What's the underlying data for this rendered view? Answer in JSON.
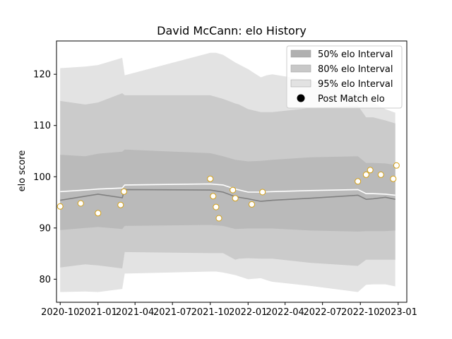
{
  "chart_data": {
    "type": "line",
    "title": "David McCann: elo History",
    "xlabel": "",
    "ylabel": "elo score",
    "xlim": [
      "2020-09-22",
      "2023-01-22"
    ],
    "ylim": [
      75.5,
      126.5
    ],
    "xticks": [
      "2020-10",
      "2021-01",
      "2021-04",
      "2021-07",
      "2021-10",
      "2022-01",
      "2022-04",
      "2022-07",
      "2022-10",
      "2023-01"
    ],
    "yticks": [
      80,
      90,
      100,
      110,
      120
    ],
    "grid": false,
    "legend_position": "top-right",
    "legend": [
      {
        "label": "50% elo Interval",
        "color": "#b0b0b0",
        "kind": "patch"
      },
      {
        "label": "80% elo Interval",
        "color": "#c8c8c8",
        "kind": "patch"
      },
      {
        "label": "95% elo Interval",
        "color": "#e2e2e2",
        "kind": "patch"
      },
      {
        "label": "Post Match elo",
        "color": "#000000",
        "kind": "marker"
      }
    ],
    "series": [
      {
        "name": "95% elo Interval",
        "kind": "band",
        "color": "#e3e3e3",
        "x": [
          "2020-10-01",
          "2020-12-01",
          "2021-01-01",
          "2021-03-01",
          "2021-03-07",
          "2021-10-01",
          "2021-10-15",
          "2021-11-01",
          "2021-12-01",
          "2022-01-01",
          "2022-02-01",
          "2022-02-15",
          "2022-03-01",
          "2022-06-01",
          "2022-09-25",
          "2022-10-15",
          "2022-11-01",
          "2022-12-01",
          "2022-12-25"
        ],
        "upper": [
          121.2,
          121.5,
          121.8,
          123.2,
          119.8,
          124.2,
          124.2,
          123.8,
          122.3,
          121.0,
          119.4,
          119.8,
          120.0,
          118.8,
          116.8,
          115.8,
          114.5,
          113.2,
          112.5
        ],
        "lower": [
          77.5,
          77.6,
          77.5,
          78.1,
          81.1,
          81.5,
          81.5,
          81.3,
          80.8,
          80.0,
          80.2,
          79.8,
          79.5,
          78.7,
          77.5,
          78.9,
          79.0,
          79.0,
          78.6
        ]
      },
      {
        "name": "80% elo Interval",
        "kind": "band",
        "color": "#cbcbcb",
        "x": [
          "2020-10-01",
          "2020-12-01",
          "2021-01-01",
          "2021-03-01",
          "2021-03-07",
          "2021-10-01",
          "2021-11-01",
          "2021-12-01",
          "2021-12-10",
          "2022-01-01",
          "2022-02-01",
          "2022-03-01",
          "2022-06-01",
          "2022-09-25",
          "2022-10-15",
          "2022-11-01",
          "2022-12-01",
          "2022-12-25"
        ],
        "upper": [
          114.8,
          114.1,
          114.5,
          116.3,
          115.9,
          115.9,
          115.2,
          114.3,
          114.1,
          113.2,
          112.6,
          112.6,
          113.4,
          113.9,
          111.6,
          111.6,
          111.0,
          110.4
        ],
        "lower": [
          82.3,
          82.9,
          82.7,
          82.1,
          85.3,
          85.1,
          85.1,
          83.8,
          84.0,
          84.1,
          84.0,
          84.0,
          83.2,
          82.6,
          83.8,
          83.8,
          83.8,
          83.8
        ]
      },
      {
        "name": "50% elo Interval",
        "kind": "band",
        "color": "#bababa",
        "x": [
          "2020-10-01",
          "2020-12-01",
          "2021-01-01",
          "2021-03-01",
          "2021-03-07",
          "2021-10-01",
          "2021-11-01",
          "2021-12-01",
          "2022-01-01",
          "2022-02-01",
          "2022-03-01",
          "2022-06-01",
          "2022-09-25",
          "2022-10-15",
          "2022-11-01",
          "2022-12-01",
          "2022-12-25"
        ],
        "upper": [
          104.3,
          104.0,
          104.5,
          104.9,
          105.3,
          104.6,
          104.0,
          103.3,
          103.0,
          103.1,
          103.3,
          103.8,
          104.0,
          102.7,
          102.7,
          102.6,
          102.3
        ],
        "lower": [
          89.6,
          90.0,
          90.2,
          89.8,
          90.4,
          90.6,
          90.4,
          89.8,
          89.9,
          89.9,
          89.9,
          89.5,
          89.3,
          89.4,
          89.4,
          89.4,
          89.5
        ]
      },
      {
        "name": "",
        "kind": "line",
        "color": "#808080",
        "x": [
          "2020-10-01",
          "2020-12-01",
          "2021-01-01",
          "2021-03-01",
          "2021-03-07",
          "2021-10-01",
          "2021-11-01",
          "2021-12-01",
          "2022-01-01",
          "2022-02-01",
          "2022-03-01",
          "2022-06-01",
          "2022-09-25",
          "2022-10-15",
          "2022-11-01",
          "2022-12-01",
          "2022-12-25"
        ],
        "y": [
          95.4,
          96.2,
          96.6,
          95.9,
          97.5,
          97.4,
          97.0,
          96.1,
          95.7,
          95.2,
          95.4,
          95.8,
          96.4,
          95.6,
          95.7,
          96.0,
          95.6
        ]
      },
      {
        "name": "",
        "kind": "line",
        "color": "#ffffff",
        "x": [
          "2020-10-01",
          "2020-12-01",
          "2021-01-01",
          "2021-03-01",
          "2021-03-07",
          "2021-10-01",
          "2021-11-01",
          "2021-12-01",
          "2022-01-01",
          "2022-02-01",
          "2022-03-01",
          "2022-06-01",
          "2022-09-25",
          "2022-10-15",
          "2022-11-01",
          "2022-12-01",
          "2022-12-25"
        ],
        "y": [
          97.1,
          97.4,
          97.6,
          97.8,
          98.4,
          98.6,
          98.4,
          97.6,
          97.0,
          97.0,
          97.1,
          97.3,
          97.5,
          96.7,
          96.7,
          96.6,
          96.4
        ]
      },
      {
        "name": "Post Match elo",
        "kind": "scatter",
        "color": "#ffffff",
        "edge": "#d4a017",
        "x": [
          "2020-10-01",
          "2020-11-20",
          "2021-01-01",
          "2021-02-25",
          "2021-03-05",
          "2021-10-01",
          "2021-10-08",
          "2021-10-15",
          "2021-10-22",
          "2021-11-25",
          "2021-12-01",
          "2022-01-10",
          "2022-02-05",
          "2022-09-25",
          "2022-10-15",
          "2022-10-25",
          "2022-11-20",
          "2022-12-20",
          "2022-12-28"
        ],
        "y": [
          94.2,
          94.8,
          92.9,
          94.5,
          97.1,
          99.6,
          96.2,
          94.1,
          91.9,
          97.4,
          95.8,
          94.6,
          97.0,
          99.1,
          100.4,
          101.3,
          100.4,
          99.6,
          102.2
        ]
      }
    ]
  }
}
